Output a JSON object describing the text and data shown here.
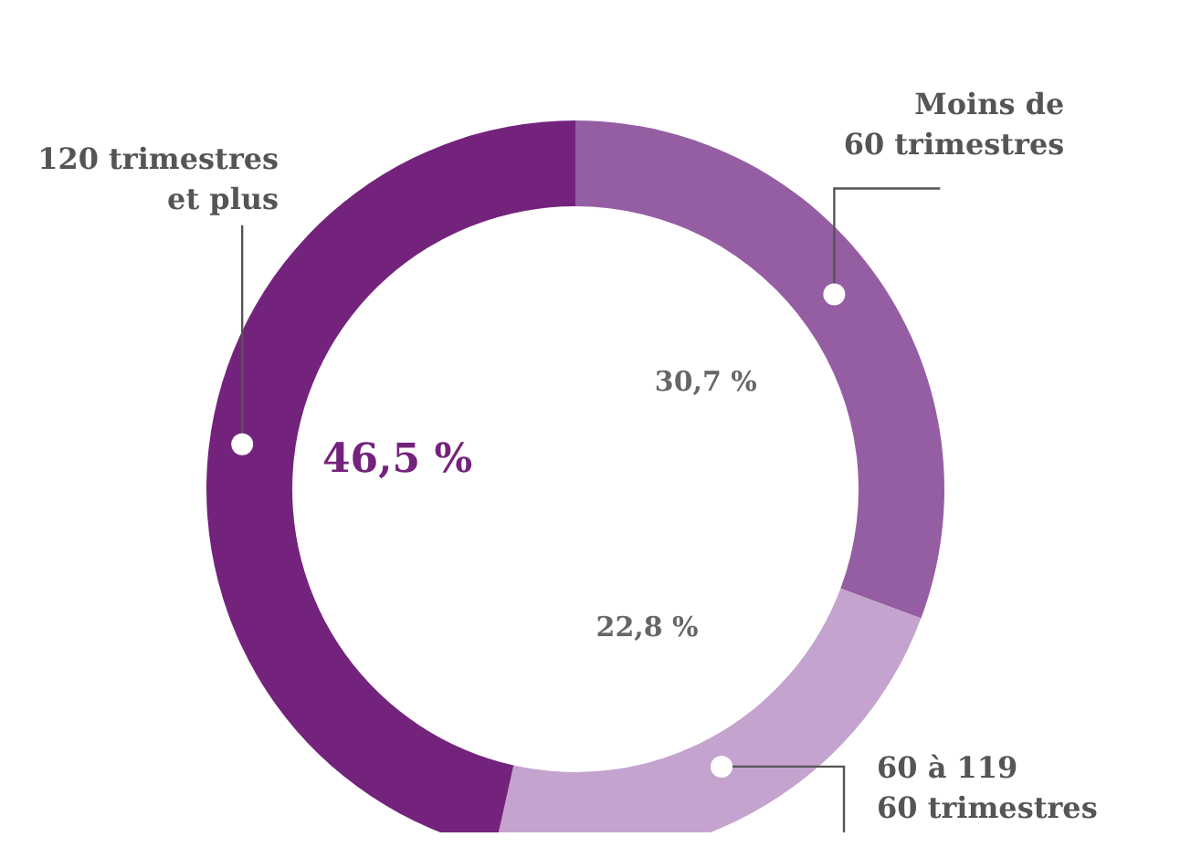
{
  "chart_data": {
    "type": "donut",
    "categories": [
      "Moins de\n60 trimestres",
      "60 à 119\n60 trimestres",
      "120 trimestres\net plus"
    ],
    "values": [
      30.7,
      22.8,
      46.5
    ],
    "colors": [
      "#955ea3",
      "#c5a3cf",
      "#74237d"
    ],
    "value_labels": [
      "30,7 %",
      "22,8 %",
      "46,5 %"
    ],
    "legend": false
  }
}
